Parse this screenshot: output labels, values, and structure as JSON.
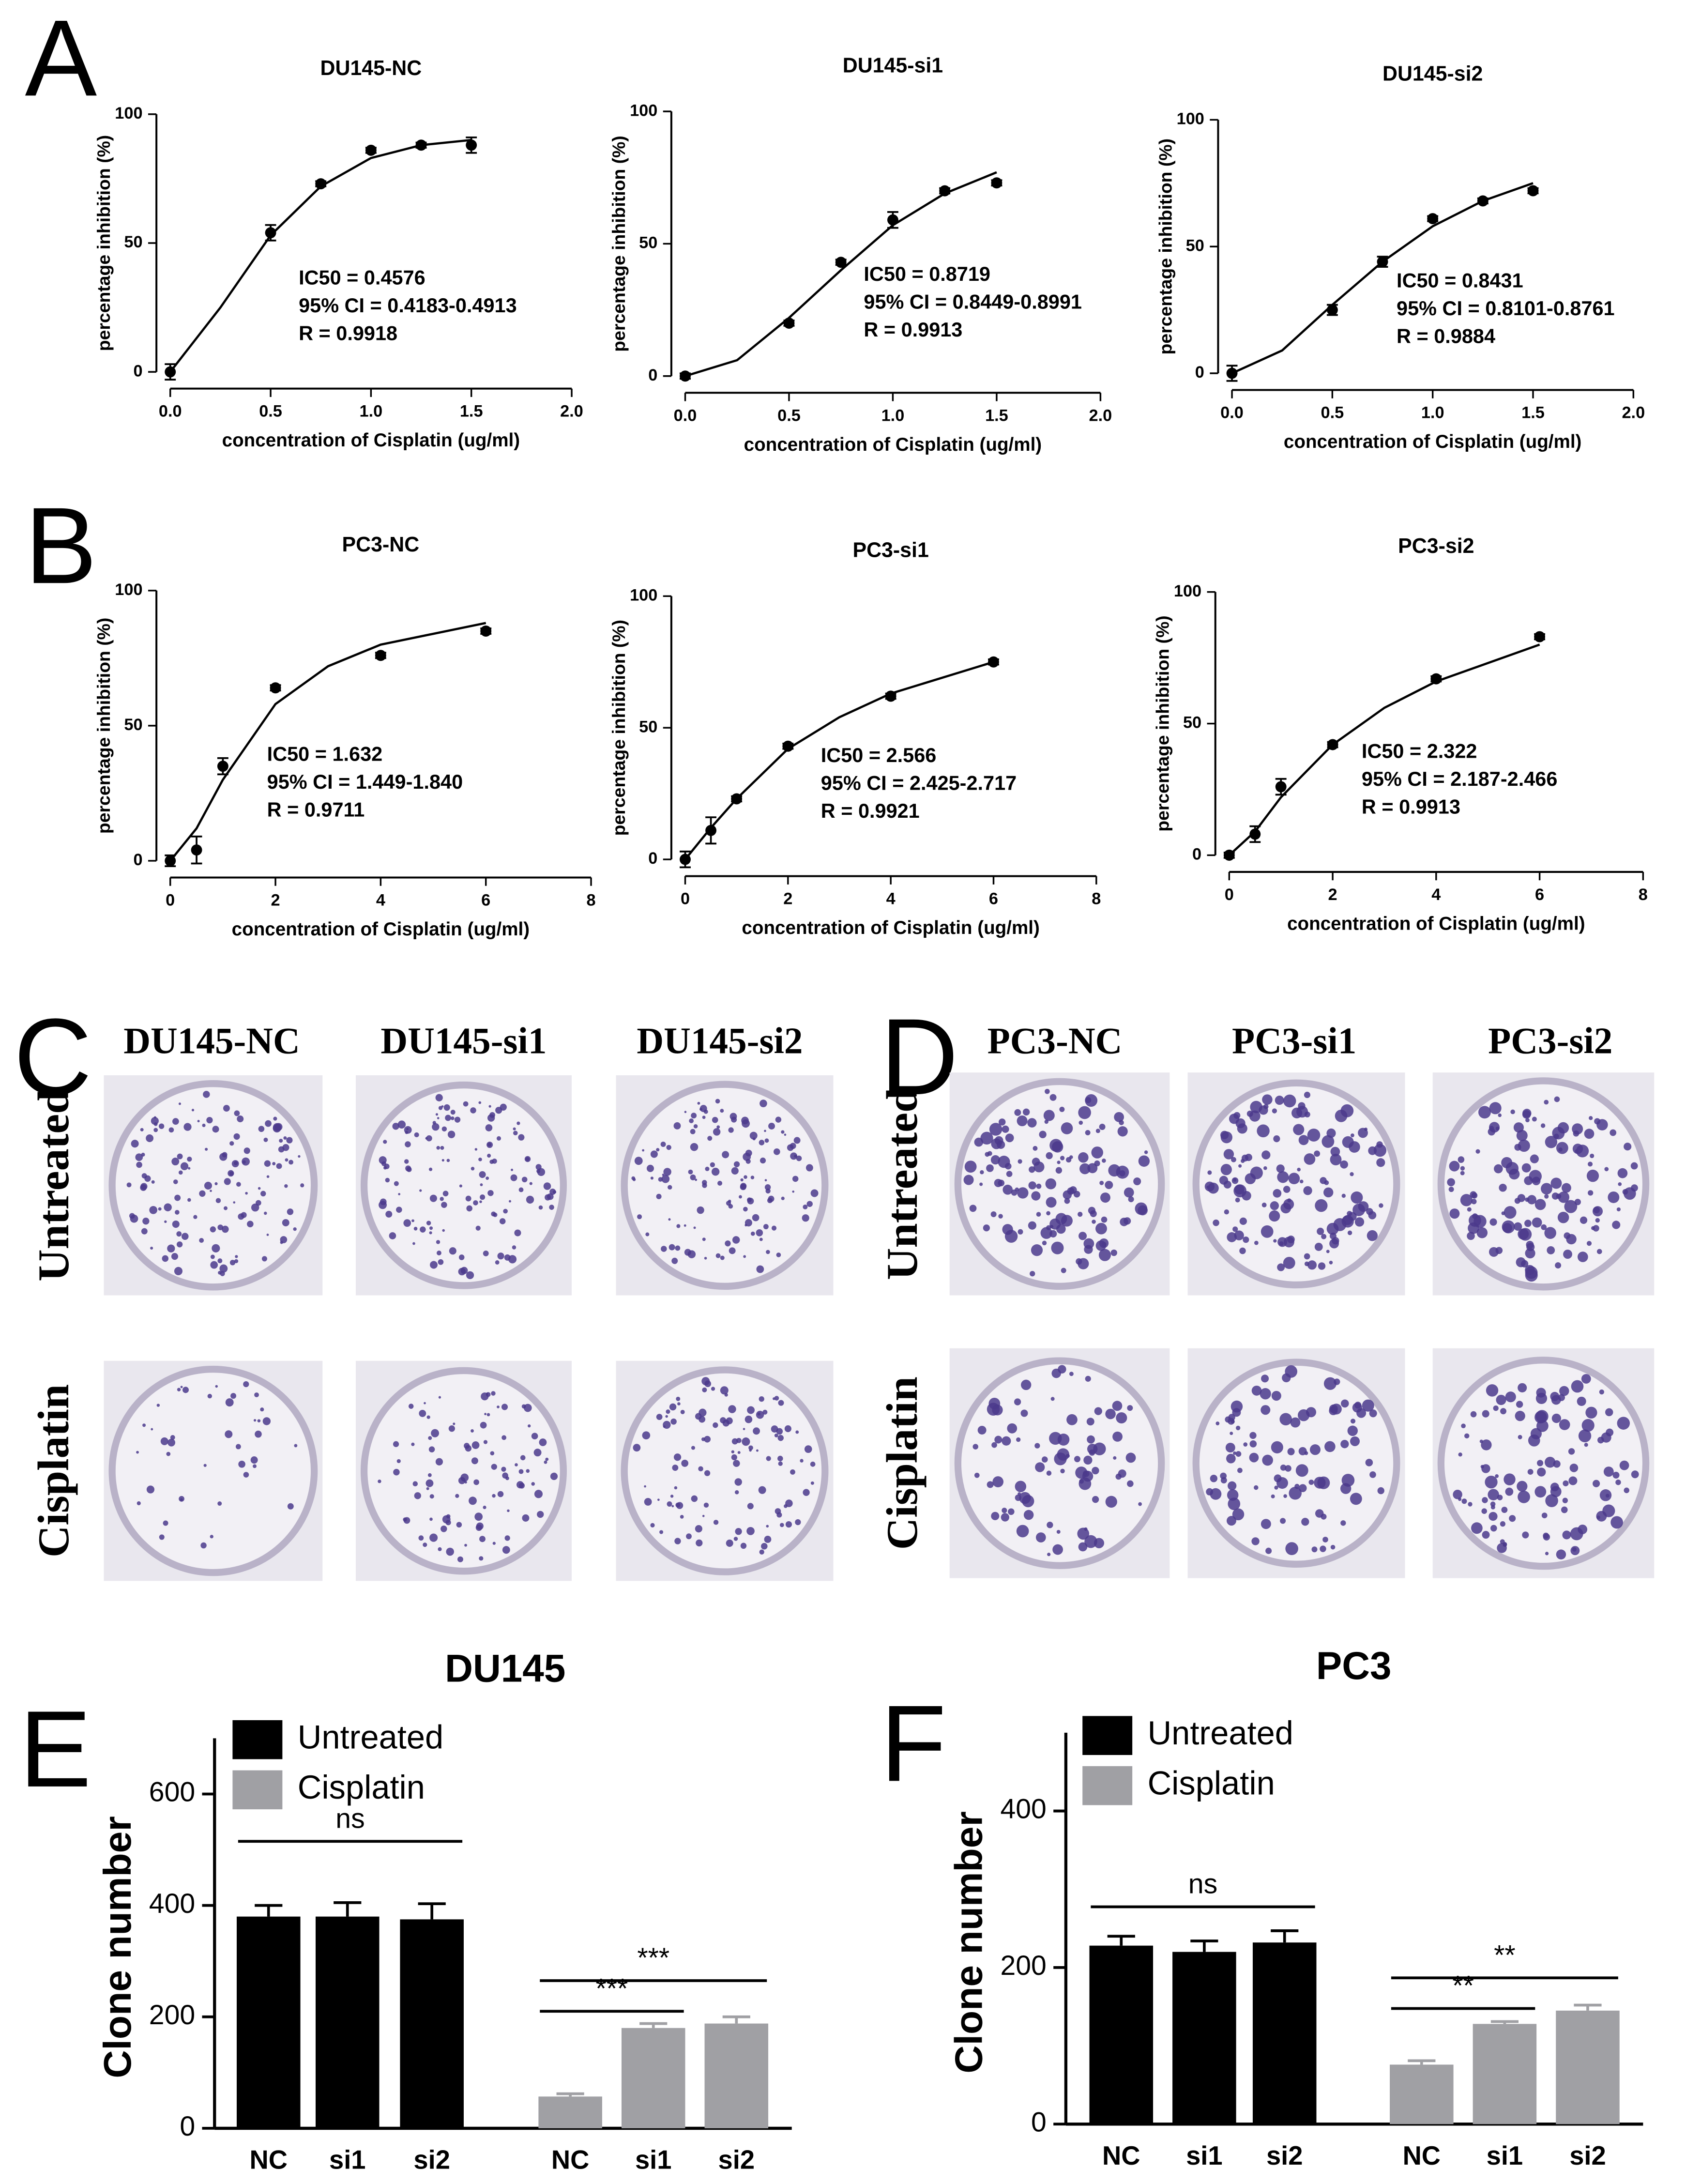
{
  "panel_labels": [
    "A",
    "B",
    "C",
    "D",
    "E",
    "F"
  ],
  "chart_data": [
    {
      "type": "scatter",
      "title": "DU145-NC",
      "x": [
        0,
        0.5,
        0.75,
        1.0,
        1.25,
        1.5
      ],
      "values": [
        0,
        54,
        73,
        86,
        88,
        88
      ],
      "errors": [
        3,
        3,
        1,
        1,
        1,
        3
      ],
      "fit_x": [
        0,
        0.25,
        0.5,
        0.75,
        1.0,
        1.25,
        1.5
      ],
      "fit_values": [
        0,
        25,
        53,
        72,
        83,
        88,
        90
      ],
      "annotations": [
        "IC50 = 0.4576",
        "95% CI = 0.4183-0.4913",
        "R = 0.9918"
      ],
      "xlabel": "concentration of Cisplatin (ug/ml)",
      "ylabel": "percentage inhibition (%)",
      "color": "#000000",
      "xlim": [
        0,
        2
      ],
      "xticks": [
        {
          "value": 0,
          "label": "0.0"
        },
        0.5,
        {
          "value": 1,
          "label": "1.0"
        },
        1.5,
        {
          "value": 2,
          "label": "2.0"
        }
      ],
      "ylim": [
        0,
        100
      ],
      "yticks": [
        0,
        50,
        100
      ]
    },
    {
      "type": "scatter",
      "title": "DU145-si1",
      "x": [
        0,
        0.5,
        0.75,
        1.0,
        1.25,
        1.5
      ],
      "values": [
        0,
        20,
        43,
        59,
        70,
        73
      ],
      "errors": [
        1,
        1,
        1,
        3,
        1,
        1
      ],
      "fit_x": [
        0,
        0.25,
        0.5,
        0.75,
        1.0,
        1.25,
        1.5
      ],
      "fit_values": [
        0,
        6,
        22,
        40,
        57,
        69,
        77
      ],
      "annotations": [
        "IC50 = 0.8719",
        "95% CI = 0.8449-0.8991",
        "R = 0.9913"
      ],
      "xlabel": "concentration of Cisplatin (ug/ml)",
      "ylabel": "percentage inhibition (%)",
      "color": "#000000",
      "xlim": [
        0,
        2
      ],
      "xticks": [
        {
          "value": 0,
          "label": "0.0"
        },
        0.5,
        {
          "value": 1,
          "label": "1.0"
        },
        1.5,
        {
          "value": 2,
          "label": "2.0"
        }
      ],
      "ylim": [
        0,
        100
      ],
      "yticks": [
        0,
        50,
        100
      ]
    },
    {
      "type": "scatter",
      "title": "DU145-si2",
      "x": [
        0,
        0.5,
        0.75,
        1.0,
        1.25,
        1.5
      ],
      "values": [
        0,
        25,
        44,
        61,
        68,
        72
      ],
      "errors": [
        3,
        2,
        2,
        1,
        1,
        1
      ],
      "fit_x": [
        0,
        0.25,
        0.5,
        0.75,
        1.0,
        1.25,
        1.5
      ],
      "fit_values": [
        0,
        9,
        27,
        44,
        58,
        68,
        75
      ],
      "annotations": [
        "IC50 = 0.8431",
        "95% CI = 0.8101-0.8761",
        "R = 0.9884"
      ],
      "xlabel": "concentration of Cisplatin (ug/ml)",
      "ylabel": "percentage inhibition (%)",
      "color": "#000000",
      "xlim": [
        0,
        2
      ],
      "xticks": [
        {
          "value": 0,
          "label": "0.0"
        },
        0.5,
        {
          "value": 1,
          "label": "1.0"
        },
        1.5,
        {
          "value": 2,
          "label": "2.0"
        }
      ],
      "ylim": [
        0,
        100
      ],
      "yticks": [
        0,
        50,
        100
      ]
    },
    {
      "type": "scatter",
      "title": "PC3-NC",
      "x": [
        0,
        0.5,
        1,
        2,
        4,
        6
      ],
      "values": [
        0,
        4,
        35,
        64,
        76,
        85
      ],
      "errors": [
        2,
        5,
        3,
        1,
        1,
        1
      ],
      "fit_x": [
        0,
        0.5,
        1,
        2,
        3,
        4,
        6
      ],
      "fit_values": [
        0,
        12,
        30,
        58,
        72,
        80,
        88
      ],
      "annotations": [
        "IC50 = 1.632",
        "95% CI = 1.449-1.840",
        "R = 0.9711"
      ],
      "xlabel": "concentration of Cisplatin (ug/ml)",
      "ylabel": "percentage inhibition (%)",
      "color": "#000000",
      "xlim": [
        0,
        8
      ],
      "xticks": [
        0,
        2,
        4,
        6,
        8
      ],
      "ylim": [
        0,
        100
      ],
      "yticks": [
        0,
        50,
        100
      ]
    },
    {
      "type": "scatter",
      "title": "PC3-si1",
      "x": [
        0,
        0.5,
        1,
        2,
        4,
        6
      ],
      "values": [
        0,
        11,
        23,
        43,
        62,
        75
      ],
      "errors": [
        3,
        5,
        1,
        1,
        1,
        1
      ],
      "fit_x": [
        0,
        0.5,
        1,
        2,
        3,
        4,
        6
      ],
      "fit_values": [
        0,
        12,
        23,
        42,
        54,
        63,
        75
      ],
      "annotations": [
        "IC50 = 2.566",
        "95% CI = 2.425-2.717",
        "R = 0.9921"
      ],
      "xlabel": "concentration of Cisplatin (ug/ml)",
      "ylabel": "percentage inhibition (%)",
      "color": "#000000",
      "xlim": [
        0,
        8
      ],
      "xticks": [
        0,
        2,
        4,
        6,
        8
      ],
      "ylim": [
        0,
        100
      ],
      "yticks": [
        0,
        50,
        100
      ]
    },
    {
      "type": "scatter",
      "title": "PC3-si2",
      "x": [
        0,
        0.5,
        1,
        2,
        4,
        6
      ],
      "values": [
        0,
        8,
        26,
        42,
        67,
        83
      ],
      "errors": [
        1,
        3,
        3,
        1,
        1,
        1
      ],
      "fit_x": [
        0,
        0.5,
        1,
        2,
        3,
        4,
        6
      ],
      "fit_values": [
        0,
        9,
        22,
        42,
        56,
        66,
        80
      ],
      "annotations": [
        "IC50 = 2.322",
        "95% CI = 2.187-2.466",
        "R = 0.9913"
      ],
      "xlabel": "concentration of Cisplatin (ug/ml)",
      "ylabel": "percentage inhibition (%)",
      "color": "#000000",
      "xlim": [
        0,
        8
      ],
      "xticks": [
        0,
        2,
        4,
        6,
        8
      ],
      "ylim": [
        0,
        100
      ],
      "yticks": [
        0,
        50,
        100
      ]
    },
    {
      "type": "bar",
      "title": "DU145",
      "ylabel": "Clone number",
      "categories": [
        "NC",
        "si1",
        "si2",
        "NC",
        "si1",
        "si2"
      ],
      "series": [
        {
          "name": "Untreated",
          "color": "#000000",
          "values": [
            380,
            380,
            375,
            null,
            null,
            null
          ],
          "errors": [
            20,
            25,
            28,
            null,
            null,
            null
          ]
        },
        {
          "name": "Cisplatin",
          "color": "#a0a0a4",
          "values": [
            null,
            null,
            null,
            57,
            180,
            188
          ],
          "errors": [
            null,
            null,
            null,
            5,
            8,
            12
          ]
        }
      ],
      "ylim": [
        0,
        700
      ],
      "yticks": [
        0,
        200,
        400,
        600
      ],
      "legend": "upper left",
      "annotations": [
        "ns",
        "***",
        "***"
      ]
    },
    {
      "type": "bar",
      "title": "PC3",
      "ylabel": "Clone number",
      "categories": [
        "NC",
        "si1",
        "si2",
        "NC",
        "si1",
        "si2"
      ],
      "series": [
        {
          "name": "Untreated",
          "color": "#000000",
          "values": [
            228,
            220,
            232,
            null,
            null,
            null
          ],
          "errors": [
            12,
            14,
            15,
            null,
            null,
            null
          ]
        },
        {
          "name": "Cisplatin",
          "color": "#a0a0a4",
          "values": [
            null,
            null,
            null,
            76,
            128,
            145
          ],
          "errors": [
            null,
            null,
            null,
            5,
            3,
            7
          ]
        }
      ],
      "ylim": [
        0,
        500
      ],
      "yticks": [
        0,
        200,
        400
      ],
      "legend": "upper left",
      "annotations": [
        "ns",
        "**",
        "**"
      ]
    }
  ],
  "colony_assay": [
    {
      "columns": [
        "DU145-NC",
        "DU145-si1",
        "DU145-si2"
      ],
      "rows": [
        "Untreated",
        "Cisplatin"
      ]
    },
    {
      "columns": [
        "PC3-NC",
        "PC3-si1",
        "PC3-si2"
      ],
      "rows": [
        "Untreated",
        "Cisplatin"
      ]
    }
  ]
}
